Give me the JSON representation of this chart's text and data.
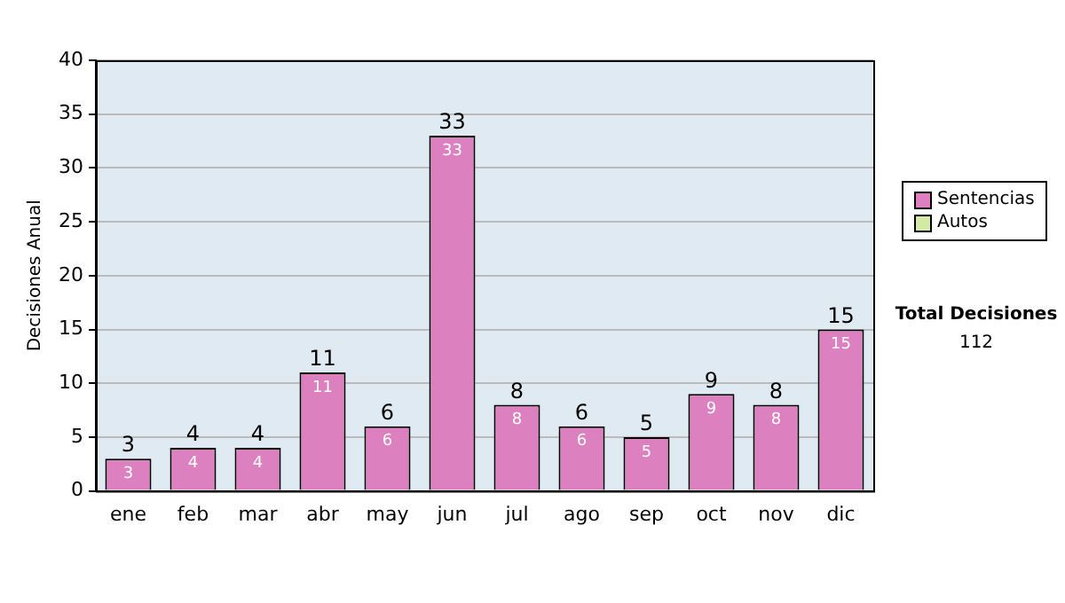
{
  "chart_data": {
    "type": "bar",
    "ylabel": "Decisiones Anual",
    "categories": [
      "ene",
      "feb",
      "mar",
      "abr",
      "may",
      "jun",
      "jul",
      "ago",
      "sep",
      "oct",
      "nov",
      "dic"
    ],
    "series": [
      {
        "name": "Sentencias",
        "color": "#dd80c0",
        "values": [
          3,
          4,
          4,
          11,
          6,
          33,
          8,
          6,
          5,
          9,
          8,
          15
        ]
      },
      {
        "name": "Autos",
        "color": "#d4e8a8",
        "values": [
          null,
          null,
          null,
          null,
          null,
          null,
          null,
          null,
          null,
          null,
          null,
          null
        ]
      }
    ],
    "ylim": [
      0,
      40
    ],
    "yticks": [
      0,
      5,
      10,
      15,
      20,
      25,
      30,
      35,
      40
    ],
    "grid": "y",
    "legend": "right",
    "data_labels": true,
    "annotations": [
      "Total Decisiones",
      "112",
      {
        "text": "3",
        "x": "ene",
        "y": 3
      },
      {
        "text": "4",
        "x": "feb",
        "y": 4
      },
      {
        "text": "4",
        "x": "mar",
        "y": 4
      },
      {
        "text": "11",
        "x": "abr",
        "y": 11
      },
      {
        "text": "6",
        "x": "may",
        "y": 6
      },
      {
        "text": "33",
        "x": "jun",
        "y": 33
      },
      {
        "text": "8",
        "x": "jul",
        "y": 8
      },
      {
        "text": "6",
        "x": "ago",
        "y": 6
      },
      {
        "text": "5",
        "x": "sep",
        "y": 5
      },
      {
        "text": "9",
        "x": "oct",
        "y": 9
      },
      {
        "text": "8",
        "x": "nov",
        "y": 8
      },
      {
        "text": "15",
        "x": "dic",
        "y": 15
      }
    ]
  }
}
